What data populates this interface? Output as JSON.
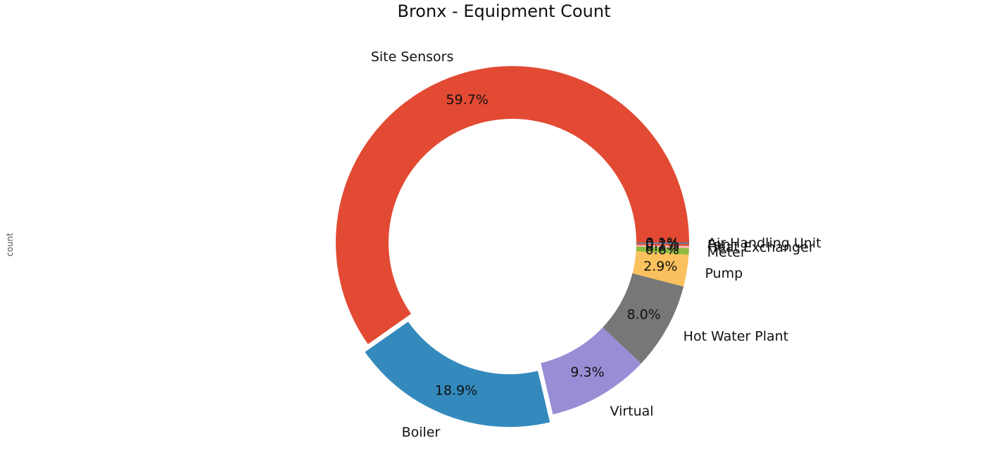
{
  "chart_data": {
    "type": "pie",
    "donut": true,
    "title": "Bronx - Equipment Count",
    "ylabel": "count",
    "slices": [
      {
        "label": "Site Sensors",
        "value": 59.7,
        "pct_label": "59.7%",
        "color": "#E24A33"
      },
      {
        "label": "Boiler",
        "value": 18.9,
        "pct_label": "18.9%",
        "color": "#348ABD"
      },
      {
        "label": "Virtual",
        "value": 9.3,
        "pct_label": "9.3%",
        "color": "#988ED5"
      },
      {
        "label": "Hot Water Plant",
        "value": 8.0,
        "pct_label": "8.0%",
        "color": "#777777"
      },
      {
        "label": "Pump",
        "value": 2.9,
        "pct_label": "2.9%",
        "color": "#FBC15E"
      },
      {
        "label": "Meter",
        "value": 0.6,
        "pct_label": "0.6%",
        "color": "#8EBA42"
      },
      {
        "label": "Heat Exchanger",
        "value": 0.2,
        "pct_label": "0.2%",
        "color": "#FFB5B8"
      },
      {
        "label": "Fan",
        "value": 0.2,
        "pct_label": "0.2%",
        "color": "#E24A33"
      },
      {
        "label": "Air Handling Unit",
        "value": 0.1,
        "pct_label": "0.1%",
        "color": "#348ABD"
      }
    ],
    "exploded": [
      "Boiler"
    ],
    "legend": "none"
  }
}
